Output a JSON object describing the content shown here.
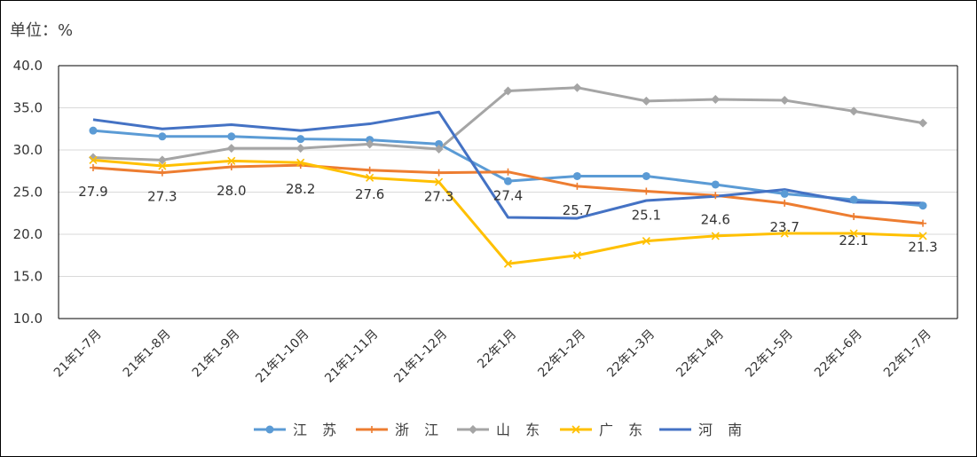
{
  "unit_label": "单位：%",
  "chart_data": {
    "type": "line",
    "ylabel": "单位：%",
    "ylim": [
      10,
      40
    ],
    "yticks": [
      "10.0",
      "15.0",
      "20.0",
      "25.0",
      "30.0",
      "35.0",
      "40.0"
    ],
    "grid": true,
    "legend_position": "bottom",
    "categories": [
      "21年1-7月",
      "21年1-8月",
      "21年1-9月",
      "21年1-10月",
      "21年1-11月",
      "21年1-12月",
      "22年1月",
      "22年1-2月",
      "22年1-3月",
      "22年1-4月",
      "22年1-5月",
      "22年1-6月",
      "22年1-7月"
    ],
    "series": [
      {
        "name": "江 苏",
        "color": "#5B9BD5",
        "marker": "circle",
        "values": [
          32.3,
          31.6,
          31.6,
          31.3,
          31.2,
          30.7,
          26.3,
          26.9,
          26.9,
          25.9,
          24.8,
          24.1,
          23.4
        ]
      },
      {
        "name": "浙 江",
        "color": "#ED7D31",
        "marker": "plus",
        "values": [
          27.9,
          27.3,
          28.0,
          28.2,
          27.6,
          27.3,
          27.4,
          25.7,
          25.1,
          24.6,
          23.7,
          22.1,
          21.3
        ],
        "labels": [
          "27.9",
          "27.3",
          "28.0",
          "28.2",
          "27.6",
          "27.3",
          "27.4",
          "25.7",
          "25.1",
          "24.6",
          "23.7",
          "22.1",
          "21.3"
        ]
      },
      {
        "name": "山 东",
        "color": "#A5A5A5",
        "marker": "diamond",
        "values": [
          29.1,
          28.8,
          30.2,
          30.2,
          30.7,
          30.1,
          37.0,
          37.4,
          35.8,
          36.0,
          35.9,
          34.6,
          33.2
        ]
      },
      {
        "name": "广 东",
        "color": "#FFC000",
        "marker": "x",
        "values": [
          28.8,
          28.1,
          28.7,
          28.5,
          26.7,
          26.2,
          16.5,
          17.5,
          19.2,
          19.8,
          20.1,
          20.1,
          19.8
        ]
      },
      {
        "name": "河 南",
        "color": "#4472C4",
        "marker": "none",
        "values": [
          33.6,
          32.5,
          33.0,
          32.3,
          33.1,
          34.5,
          22.0,
          21.9,
          24.0,
          24.5,
          25.3,
          23.8,
          23.7
        ]
      }
    ]
  }
}
